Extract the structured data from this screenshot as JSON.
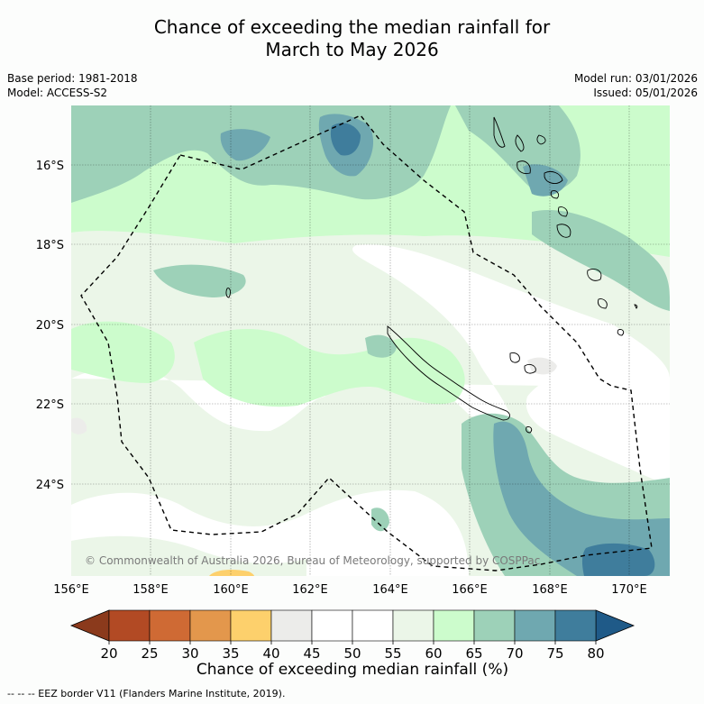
{
  "title": {
    "line1": "Chance of exceeding the median rainfall for",
    "line2": "March to May 2026"
  },
  "meta": {
    "base_period": "Base period: 1981-2018",
    "model": "Model: ACCESS-S2",
    "model_run": "Model run: 03/01/2026",
    "issued": "Issued: 05/01/2026"
  },
  "map": {
    "lat_labels": [
      "16°S",
      "18°S",
      "20°S",
      "22°S",
      "24°S"
    ],
    "lon_labels": [
      "156°E",
      "158°E",
      "160°E",
      "162°E",
      "164°E",
      "166°E",
      "168°E",
      "170°E"
    ],
    "copyright": "© Commonwealth of Australia 2026, Bureau of Meteorology, supported by COSPPac"
  },
  "colorbar": {
    "ticks": [
      "20",
      "25",
      "30",
      "35",
      "40",
      "45",
      "50",
      "55",
      "60",
      "65",
      "70",
      "75",
      "80"
    ],
    "colors": [
      "#b24a24",
      "#cf6a34",
      "#e3974c",
      "#fdd06c",
      "#ececea",
      "#ffffff",
      "#ffffff",
      "#ebf6e8",
      "#ccfccc",
      "#9dd1b8",
      "#6fa8b0",
      "#3f7d9c"
    ],
    "under_color": "#8b3a1c",
    "over_color": "#1f5a88",
    "label": "Chance of exceeding median rainfall (%)"
  },
  "footer": "-- -- -- EEZ border V11 (Flanders Marine Institute, 2019)."
}
